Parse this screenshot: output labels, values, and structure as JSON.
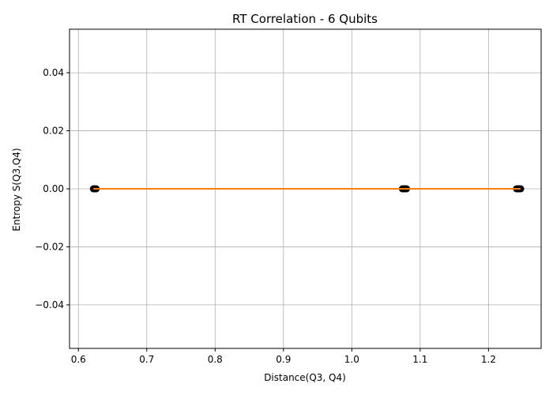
{
  "chart_data": {
    "type": "scatter",
    "title": "RT Correlation - 6 Qubits",
    "xlabel": "Distance(Q3, Q4)",
    "ylabel": "Entropy S(Q3,Q4)",
    "xlim": [
      0.587,
      1.277
    ],
    "ylim": [
      -0.055,
      0.055
    ],
    "xticks": [
      0.6,
      0.7,
      0.8,
      0.9,
      1.0,
      1.1,
      1.2
    ],
    "xtick_labels": [
      "0.6",
      "0.7",
      "0.8",
      "0.9",
      "1.0",
      "1.1",
      "1.2"
    ],
    "yticks": [
      -0.04,
      -0.02,
      0.0,
      0.02,
      0.04
    ],
    "ytick_labels": [
      "−0.04",
      "−0.02",
      "0.00",
      "0.02",
      "0.04"
    ],
    "grid": true,
    "series": [
      {
        "kind": "scatter",
        "color": "#000000",
        "x": [
          0.622,
          0.624,
          0.626,
          1.074,
          1.076,
          1.078,
          1.08,
          1.241,
          1.243,
          1.245,
          1.247
        ],
        "y": [
          0,
          0,
          0,
          0,
          0,
          0,
          0,
          0,
          0,
          0,
          0
        ]
      },
      {
        "kind": "line",
        "color": "#ff7f0e",
        "x": [
          0.622,
          1.247
        ],
        "y": [
          0,
          0
        ]
      }
    ]
  }
}
